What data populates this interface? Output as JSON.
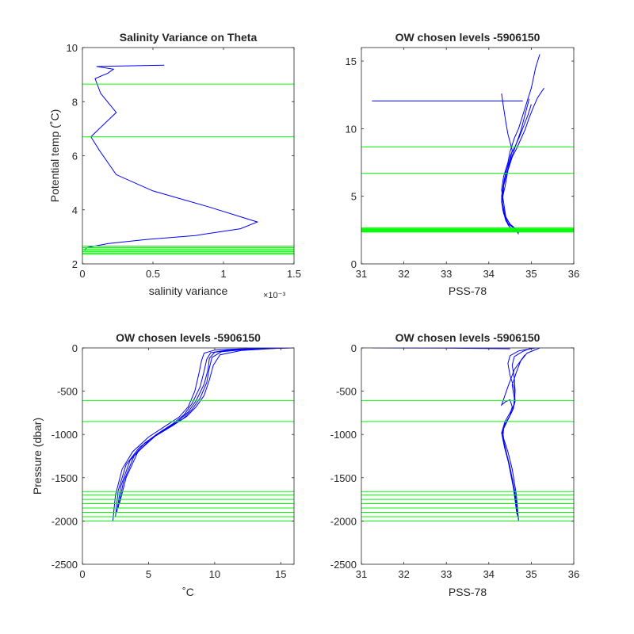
{
  "colors": {
    "profile": "#0000ff",
    "level": "#00ff00",
    "axes": "#262626"
  },
  "chart_data": [
    {
      "type": "line",
      "title": "Salinity Variance on Theta",
      "xlabel": "salinity variance",
      "ylabel": "Potential temp (˚C)",
      "x_exponent_label": "×10⁻³",
      "xlim": [
        0,
        0.0015
      ],
      "ylim": [
        2,
        10
      ],
      "xticks": [
        0,
        0.0005,
        0.001,
        0.0015
      ],
      "xtick_labels": [
        "0",
        "0.5",
        "1",
        "1.5"
      ],
      "yticks": [
        2,
        4,
        6,
        8,
        10
      ],
      "ytick_labels": [
        "2",
        "4",
        "6",
        "8",
        "10"
      ],
      "series": [
        {
          "x": [
            0.00058,
            0.0001,
            0.00022,
            0.00018,
            9e-05,
            0.00013,
            0.00024,
            6e-05,
            0.00012,
            0.00024,
            0.0005,
            0.0009,
            0.00124,
            0.00112,
            0.0008,
            0.00045,
            0.00018,
            3e-05,
            1.5e-05
          ],
          "y": [
            9.35,
            9.3,
            9.2,
            9.05,
            8.85,
            8.3,
            7.6,
            6.7,
            6.2,
            5.3,
            4.7,
            4.1,
            3.55,
            3.3,
            3.05,
            2.9,
            2.75,
            2.6,
            2.5
          ]
        }
      ],
      "level_lines": [
        8.65,
        6.7,
        2.66,
        2.6,
        2.55,
        2.5,
        2.45,
        2.4,
        2.36
      ]
    },
    {
      "type": "line",
      "title": "OW chosen levels -5906150",
      "xlabel": "PSS-78",
      "ylabel": "",
      "xlim": [
        31,
        36
      ],
      "ylim": [
        0,
        16
      ],
      "xticks": [
        31,
        32,
        33,
        34,
        35,
        36
      ],
      "xtick_labels": [
        "31",
        "32",
        "33",
        "34",
        "35",
        "36"
      ],
      "yticks": [
        0,
        5,
        10,
        15
      ],
      "ytick_labels": [
        "0",
        "5",
        "10",
        "15"
      ],
      "series": [
        {
          "x": [
            34.7,
            34.65,
            34.5,
            34.4,
            34.35,
            34.3,
            34.35,
            34.45,
            34.5,
            34.55,
            34.6,
            34.7,
            34.8,
            34.9,
            35.0,
            35.1,
            35.2
          ],
          "y": [
            2.2,
            2.5,
            2.9,
            3.5,
            4.5,
            5.5,
            6.5,
            7.5,
            8.3,
            8.8,
            9.3,
            10.0,
            11.0,
            12.0,
            13.0,
            14.5,
            15.5
          ]
        },
        {
          "x": [
            34.7,
            34.6,
            34.45,
            34.35,
            34.3,
            34.35,
            34.4,
            34.5,
            34.55,
            34.5,
            34.45,
            34.4,
            34.35,
            34.3
          ],
          "y": [
            2.3,
            2.6,
            3.0,
            3.8,
            4.8,
            5.8,
            6.8,
            7.6,
            8.4,
            9.0,
            9.6,
            10.5,
            11.5,
            12.6
          ]
        },
        {
          "x": [
            34.7,
            34.65,
            34.5,
            34.35,
            34.3,
            34.38,
            34.45,
            34.55,
            34.65,
            34.75,
            34.85,
            34.95,
            35.05,
            35.15,
            35.3
          ],
          "y": [
            2.3,
            2.55,
            2.95,
            3.7,
            4.6,
            5.7,
            6.9,
            7.9,
            8.5,
            9.2,
            9.9,
            10.8,
            11.6,
            12.3,
            13.0
          ]
        },
        {
          "x": [
            34.6,
            34.5,
            34.4,
            34.33,
            34.3,
            34.36,
            34.44,
            34.52,
            34.62,
            34.72,
            34.82,
            34.92,
            35.0
          ],
          "y": [
            2.4,
            2.7,
            3.2,
            4.0,
            5.0,
            6.2,
            7.2,
            8.1,
            8.7,
            9.4,
            10.2,
            11.0,
            11.8
          ]
        },
        {
          "x": [
            34.55,
            34.45,
            34.38,
            34.32,
            34.35,
            34.45,
            34.55,
            34.65,
            34.75,
            34.85,
            34.95
          ],
          "y": [
            2.5,
            2.9,
            3.6,
            4.5,
            5.8,
            7.0,
            8.0,
            8.9,
            9.8,
            11.0,
            12.2
          ]
        },
        {
          "x": [
            31.25,
            34.8
          ],
          "y": [
            12.05,
            12.05
          ]
        }
      ],
      "level_lines": [
        8.65,
        6.7,
        2.66,
        2.6,
        2.55,
        2.5,
        2.45,
        2.4,
        2.36
      ]
    },
    {
      "type": "line",
      "title": "OW chosen levels -5906150",
      "xlabel": "˚C",
      "ylabel": "Pressure (dbar)",
      "xlim": [
        0,
        16
      ],
      "ylim": [
        -2500,
        0
      ],
      "xticks": [
        0,
        5,
        10,
        15
      ],
      "xtick_labels": [
        "0",
        "5",
        "10",
        "15"
      ],
      "yticks": [
        -2500,
        -2000,
        -1500,
        -1000,
        -500,
        0
      ],
      "ytick_labels": [
        "-2500",
        "-2000",
        "-1500",
        "-1000",
        "-500",
        "0"
      ],
      "series": [
        {
          "x": [
            2.3,
            2.5,
            3.0,
            3.8,
            5.0,
            6.3,
            7.3,
            8.0,
            8.5,
            8.8,
            9.0,
            9.2,
            10.0,
            12.0,
            16.0
          ],
          "y": [
            -2000,
            -1700,
            -1400,
            -1200,
            -1030,
            -900,
            -800,
            -680,
            -500,
            -300,
            -150,
            -60,
            -25,
            -10,
            0
          ]
        },
        {
          "x": [
            2.5,
            2.7,
            3.3,
            4.3,
            5.6,
            6.8,
            7.7,
            8.3,
            8.9,
            9.2,
            9.4,
            9.7,
            11.0,
            13.0,
            15.5
          ],
          "y": [
            -1950,
            -1650,
            -1350,
            -1150,
            -1000,
            -880,
            -770,
            -640,
            -450,
            -270,
            -130,
            -55,
            -25,
            -10,
            0
          ]
        },
        {
          "x": [
            2.6,
            2.9,
            3.6,
            4.7,
            6.0,
            7.2,
            8.0,
            8.6,
            9.2,
            9.5,
            9.6,
            10.0,
            11.5,
            14.0,
            15.8
          ],
          "y": [
            -1900,
            -1600,
            -1300,
            -1100,
            -960,
            -850,
            -740,
            -610,
            -420,
            -250,
            -120,
            -50,
            -20,
            -8,
            0
          ]
        },
        {
          "x": [
            2.7,
            3.1,
            3.9,
            5.1,
            6.4,
            7.6,
            8.3,
            8.9,
            9.4,
            9.6,
            9.8,
            10.5,
            12.5,
            15.0
          ],
          "y": [
            -1850,
            -1550,
            -1250,
            -1060,
            -930,
            -820,
            -710,
            -580,
            -400,
            -230,
            -110,
            -45,
            -15,
            0
          ]
        },
        {
          "x": [
            2.8,
            3.3,
            4.2,
            5.5,
            6.8,
            7.9,
            8.6,
            9.2,
            9.6,
            9.9,
            10.4,
            12.0,
            15.2
          ],
          "y": [
            -1800,
            -1500,
            -1200,
            -1020,
            -900,
            -790,
            -680,
            -550,
            -370,
            -200,
            -80,
            -30,
            0
          ]
        }
      ],
      "level_lines": [
        -610,
        -850,
        -1660,
        -1700,
        -1750,
        -1800,
        -1850,
        -1900,
        -1950,
        -2000
      ]
    },
    {
      "type": "line",
      "title": "OW chosen levels -5906150",
      "xlabel": "PSS-78",
      "ylabel": "",
      "xlim": [
        31,
        36
      ],
      "ylim": [
        -2500,
        0
      ],
      "xticks": [
        31,
        32,
        33,
        34,
        35,
        36
      ],
      "xtick_labels": [
        "31",
        "32",
        "33",
        "34",
        "35",
        "36"
      ],
      "yticks": [
        -2500,
        -2000,
        -1500,
        -1000,
        -500,
        0
      ],
      "ytick_labels": [
        "-2500",
        "-2000",
        "-1500",
        "-1000",
        "-500",
        "0"
      ],
      "series": [
        {
          "x": [
            34.7,
            34.65,
            34.55,
            34.45,
            34.35,
            34.32,
            34.38,
            34.5,
            34.6,
            34.62,
            34.6,
            34.55,
            34.6,
            34.8,
            35.0
          ],
          "y": [
            -2000,
            -1700,
            -1400,
            -1200,
            -1050,
            -950,
            -850,
            -750,
            -650,
            -500,
            -350,
            -200,
            -100,
            -40,
            0
          ]
        },
        {
          "x": [
            34.7,
            34.62,
            34.5,
            34.4,
            34.33,
            34.35,
            34.45,
            34.55,
            34.62,
            34.6,
            34.5,
            34.45,
            34.5,
            34.7,
            35.1
          ],
          "y": [
            -1980,
            -1680,
            -1380,
            -1180,
            -1030,
            -930,
            -830,
            -730,
            -620,
            -470,
            -320,
            -180,
            -90,
            -35,
            0
          ]
        },
        {
          "x": [
            34.68,
            34.6,
            34.48,
            34.37,
            34.31,
            34.36,
            34.48,
            34.58,
            34.6,
            34.55,
            34.65,
            34.75,
            34.9,
            35.2
          ],
          "y": [
            -1950,
            -1650,
            -1350,
            -1150,
            -1000,
            -900,
            -800,
            -700,
            -580,
            -430,
            -280,
            -150,
            -60,
            0
          ]
        },
        {
          "x": [
            34.66,
            34.58,
            34.46,
            34.36,
            34.3,
            34.38,
            34.5,
            34.55,
            34.5,
            34.4,
            34.3,
            34.45,
            34.6,
            34.85
          ],
          "y": [
            -1920,
            -1620,
            -1320,
            -1120,
            -980,
            -880,
            -780,
            -680,
            -600,
            -620,
            -660,
            -450,
            -250,
            -80
          ]
        },
        {
          "x": [
            31.25,
            33.0,
            34.5
          ],
          "y": [
            0,
            -3,
            -10
          ]
        }
      ],
      "level_lines": [
        -610,
        -850,
        -1660,
        -1700,
        -1750,
        -1800,
        -1850,
        -1900,
        -1950,
        -2000
      ]
    }
  ]
}
